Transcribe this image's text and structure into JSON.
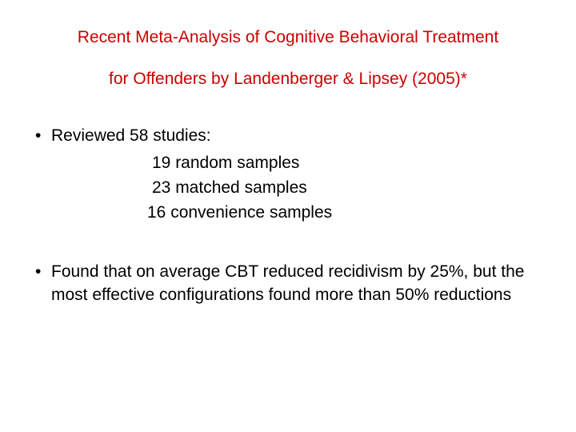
{
  "title": {
    "line1": "Recent Meta-Analysis of Cognitive Behavioral Treatment",
    "line2": "for Offenders by Landenberger & Lipsey (2005)*",
    "color": "#cc0000",
    "fontsize": 21
  },
  "body_color": "#000000",
  "body_fontsize": 21,
  "bullets": [
    {
      "text": "Reviewed 58 studies:",
      "subs": [
        "19 random samples",
        "23 matched samples",
        "16 convenience samples"
      ]
    },
    {
      "text": "Found that on average CBT reduced recidivism by 25%, but the most effective configurations found more than 50% reductions",
      "subs": []
    }
  ],
  "background_color": "#ffffff"
}
